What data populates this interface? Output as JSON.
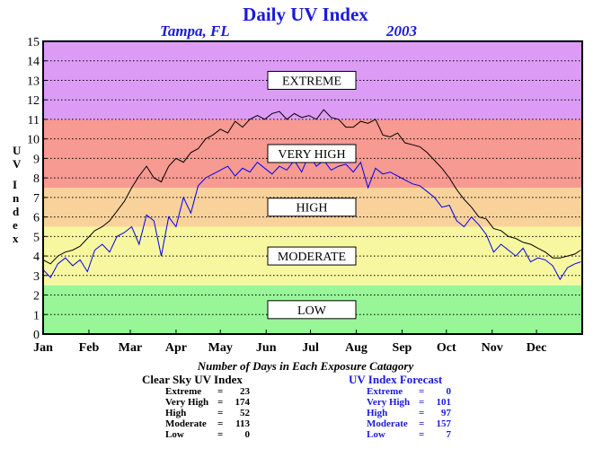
{
  "chart_data": {
    "type": "line",
    "title": "Daily UV Index",
    "location": "Tampa, FL",
    "year": "2003",
    "ylabel": "UV Index",
    "ylim": [
      0,
      15
    ],
    "yticks": [
      0,
      1,
      2,
      3,
      4,
      5,
      6,
      7,
      8,
      9,
      10,
      11,
      12,
      13,
      14,
      15
    ],
    "xlim": [
      0,
      365
    ],
    "x_ticks": [
      {
        "day": 0,
        "label": "Jan"
      },
      {
        "day": 31,
        "label": "Feb"
      },
      {
        "day": 59,
        "label": "Mar"
      },
      {
        "day": 90,
        "label": "Apr"
      },
      {
        "day": 120,
        "label": "May"
      },
      {
        "day": 151,
        "label": "Jun"
      },
      {
        "day": 181,
        "label": "Jul"
      },
      {
        "day": 212,
        "label": "Aug"
      },
      {
        "day": 243,
        "label": "Sep"
      },
      {
        "day": 273,
        "label": "Oct"
      },
      {
        "day": 304,
        "label": "Nov"
      },
      {
        "day": 334,
        "label": "Dec"
      }
    ],
    "grid": "horizontal dotted",
    "bands": [
      {
        "label": "LOW",
        "from": 0,
        "to": 2.5,
        "color": "#98f598"
      },
      {
        "label": "MODERATE",
        "from": 2.5,
        "to": 5.5,
        "color": "#f7f7a0"
      },
      {
        "label": "HIGH",
        "from": 5.5,
        "to": 7.5,
        "color": "#f9d29b"
      },
      {
        "label": "VERY HIGH",
        "from": 7.5,
        "to": 11,
        "color": "#f79a92"
      },
      {
        "label": "EXTREME",
        "from": 11,
        "to": 15,
        "color": "#dc9cf5"
      }
    ],
    "series": [
      {
        "name": "Clear Sky UV Index",
        "color": "#000000",
        "x": [
          0,
          5,
          10,
          15,
          20,
          25,
          30,
          35,
          40,
          45,
          50,
          55,
          60,
          65,
          70,
          75,
          80,
          85,
          90,
          95,
          100,
          105,
          110,
          115,
          120,
          125,
          130,
          135,
          140,
          145,
          150,
          155,
          160,
          165,
          170,
          175,
          180,
          185,
          190,
          195,
          200,
          205,
          210,
          215,
          220,
          225,
          230,
          235,
          240,
          245,
          250,
          255,
          260,
          265,
          270,
          275,
          280,
          285,
          290,
          295,
          300,
          305,
          310,
          315,
          320,
          325,
          330,
          335,
          340,
          345,
          350,
          355,
          360,
          364
        ],
        "y": [
          3.8,
          3.6,
          4.0,
          4.2,
          4.3,
          4.5,
          4.9,
          5.3,
          5.5,
          5.8,
          6.3,
          6.8,
          7.5,
          8.1,
          8.6,
          8.0,
          7.8,
          8.6,
          9.0,
          8.8,
          9.3,
          9.5,
          10.0,
          10.2,
          10.5,
          10.3,
          10.9,
          10.6,
          11.0,
          11.2,
          11.0,
          11.3,
          11.4,
          11.0,
          11.3,
          11.1,
          11.2,
          11.0,
          11.5,
          11.1,
          11.0,
          10.6,
          10.6,
          10.9,
          10.8,
          11.0,
          10.2,
          10.1,
          10.3,
          9.8,
          9.7,
          9.6,
          9.3,
          8.9,
          8.5,
          8.0,
          7.4,
          6.9,
          6.5,
          6.0,
          5.9,
          5.4,
          5.3,
          5.0,
          4.9,
          4.7,
          4.6,
          4.4,
          4.2,
          3.9,
          3.9,
          4.0,
          4.1,
          4.3
        ]
      },
      {
        "name": "UV Index Forecast",
        "color": "#0000ee",
        "x": [
          0,
          5,
          10,
          15,
          20,
          25,
          30,
          35,
          40,
          45,
          50,
          55,
          60,
          65,
          70,
          75,
          80,
          85,
          90,
          95,
          100,
          105,
          110,
          115,
          120,
          125,
          130,
          135,
          140,
          145,
          150,
          155,
          160,
          165,
          170,
          175,
          180,
          185,
          190,
          195,
          200,
          205,
          210,
          215,
          220,
          225,
          230,
          235,
          240,
          245,
          250,
          255,
          260,
          265,
          270,
          275,
          280,
          285,
          290,
          295,
          300,
          305,
          310,
          315,
          320,
          325,
          330,
          335,
          340,
          345,
          350,
          355,
          360,
          364
        ],
        "y": [
          3.3,
          2.9,
          3.6,
          3.9,
          3.5,
          3.8,
          3.2,
          4.3,
          4.6,
          4.2,
          5.0,
          5.2,
          5.5,
          4.6,
          6.1,
          5.8,
          4.0,
          6.0,
          5.5,
          7.0,
          6.2,
          7.6,
          8.0,
          8.2,
          8.4,
          8.6,
          8.1,
          8.5,
          8.3,
          8.8,
          8.5,
          8.2,
          8.6,
          8.4,
          8.9,
          8.3,
          9.2,
          8.6,
          8.9,
          8.4,
          8.6,
          8.7,
          8.3,
          8.8,
          7.5,
          8.5,
          8.2,
          8.3,
          8.1,
          7.9,
          7.7,
          7.6,
          7.3,
          7.0,
          6.5,
          6.6,
          5.8,
          5.5,
          6.0,
          5.6,
          5.1,
          4.2,
          4.6,
          4.3,
          4.0,
          4.4,
          3.7,
          3.9,
          3.8,
          3.5,
          2.8,
          3.4,
          3.6,
          3.7
        ]
      }
    ]
  },
  "caption": "Number of Days in Each Exposure Catagory",
  "clear_sky": {
    "title": "Clear Sky UV Index",
    "rows": [
      {
        "name": "Extreme",
        "eq": "=",
        "value": "23"
      },
      {
        "name": "Very High",
        "eq": "=",
        "value": "174"
      },
      {
        "name": "High",
        "eq": "=",
        "value": "52"
      },
      {
        "name": "Moderate",
        "eq": "=",
        "value": "113"
      },
      {
        "name": "Low",
        "eq": "=",
        "value": "0"
      }
    ]
  },
  "forecast": {
    "title": "UV Index Forecast",
    "rows": [
      {
        "name": "Extreme",
        "eq": "=",
        "value": "0"
      },
      {
        "name": "Very High",
        "eq": "=",
        "value": "101"
      },
      {
        "name": "High",
        "eq": "=",
        "value": "97"
      },
      {
        "name": "Moderate",
        "eq": "=",
        "value": "157"
      },
      {
        "name": "Low",
        "eq": "=",
        "value": "7"
      }
    ]
  },
  "colors": {
    "title": "#1a1adc",
    "forecast_text": "#1a1adc",
    "clear_sky_line": "#000000",
    "forecast_line": "#0000ee"
  }
}
